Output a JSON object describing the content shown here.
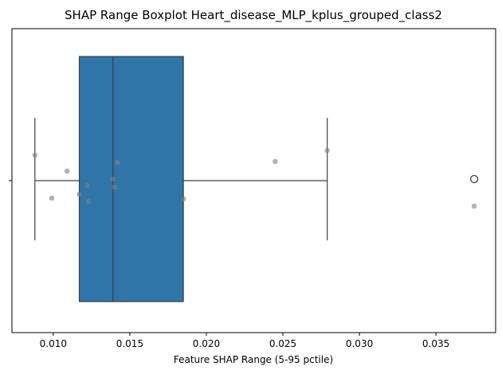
{
  "chart_data": {
    "type": "boxplot",
    "title": "SHAP Range Boxplot Heart_disease_MLP_kplus_grouped_class2",
    "xlabel": "Feature SHAP Range (5-95 pctile)",
    "ylabel": "",
    "xlim": [
      0.0073,
      0.0389
    ],
    "xticks": [
      0.01,
      0.015,
      0.02,
      0.025,
      0.03,
      0.035
    ],
    "xtick_labels": [
      "0.010",
      "0.015",
      "0.020",
      "0.025",
      "0.030",
      "0.035"
    ],
    "box": {
      "whisker_low": 0.0088,
      "q1": 0.0117,
      "median": 0.0139,
      "q3": 0.0185,
      "whisker_high": 0.0279,
      "outliers": [
        0.0375
      ]
    },
    "points": [
      0.0088,
      0.0099,
      0.0109,
      0.0117,
      0.0122,
      0.0123,
      0.0139,
      0.014,
      0.0142,
      0.0185,
      0.0245,
      0.0279,
      0.0375
    ],
    "box_color": "#2f75a8",
    "point_color": "#7f7f7f",
    "grid": false,
    "legend": "none"
  }
}
